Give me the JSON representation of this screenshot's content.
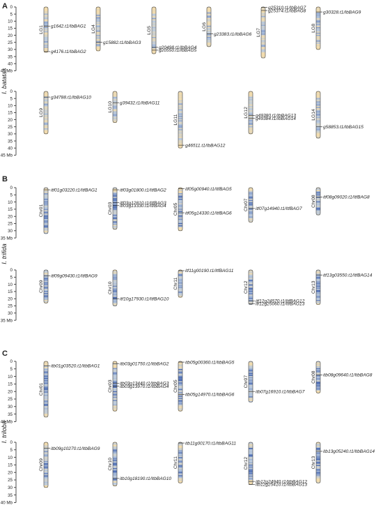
{
  "panels": [
    {
      "letter": "A",
      "species": "I. batatas",
      "unit": "Mb",
      "rows": [
        {
          "max": 45,
          "step": 5,
          "chromosomes": [
            {
              "name": "LG1",
              "length": 32,
              "genes": [
                {
                  "label": "g1642.t1/IbBAG1",
                  "pos": 13.5
                },
                {
                  "label": "g4176.t1/IbBAG2",
                  "pos": 31.5
                }
              ]
            },
            {
              "name": "LG4",
              "length": 31,
              "genes": [
                {
                  "label": "g15882.t1/IbBAG3",
                  "pos": 25
                }
              ]
            },
            {
              "name": "LG5",
              "length": 33,
              "genes": [
                {
                  "label": "g20498.t1/IbBAG4",
                  "pos": 28.5
                },
                {
                  "label": "g20550.t1/IbBAG5",
                  "pos": 30.5
                }
              ]
            },
            {
              "name": "LG6",
              "length": 28,
              "genes": [
                {
                  "label": "g23383.t1/IbBAG6",
                  "pos": 19
                }
              ]
            },
            {
              "name": "LG7",
              "length": 36,
              "genes": [
                {
                  "label": "g25310.t1/IbBAG7",
                  "pos": 0.3
                },
                {
                  "label": "g25374.t1/IbBAG8",
                  "pos": 2.5
                }
              ]
            },
            {
              "name": "LG8",
              "length": 30,
              "genes": [
                {
                  "label": "g30328.t1/IbBAG9",
                  "pos": 3.5
                }
              ]
            }
          ]
        },
        {
          "max": 45,
          "step": 5,
          "chromosomes": [
            {
              "name": "LG9",
              "length": 30,
              "genes": [
                {
                  "label": "g34788.t1/IbBAG10",
                  "pos": 4
                }
              ]
            },
            {
              "name": "LG10",
              "length": 22,
              "genes": [
                {
                  "label": "g39432.t1/IbBAG11",
                  "pos": 8
                }
              ]
            },
            {
              "name": "LG11",
              "length": 40,
              "genes": [
                {
                  "label": "g46511.t1/IbBAG12",
                  "pos": 38
                }
              ]
            },
            {
              "name": "LG12",
              "length": 30,
              "genes": [
                {
                  "label": "g49380.t1/IbBAG13",
                  "pos": 17
                },
                {
                  "label": "g49384.t1/IbBAG14",
                  "pos": 19
                }
              ]
            },
            {
              "name": "LG14",
              "length": 33,
              "genes": [
                {
                  "label": "g58853.t1/IbBAG15",
                  "pos": 25
                }
              ]
            }
          ]
        }
      ]
    },
    {
      "letter": "B",
      "species": "I. trifida",
      "unit": "Mb",
      "rows": [
        {
          "max": 35,
          "step": 5,
          "chromosomes": [
            {
              "name": "Chr01",
              "length": 32,
              "genes": [
                {
                  "label": "itf01g03220.t1/ItfBAG1",
                  "pos": 1.5
                }
              ]
            },
            {
              "name": "Chr03",
              "length": 29,
              "genes": [
                {
                  "label": "itf03g01800.t1/ItfBAG2",
                  "pos": 1.5
                },
                {
                  "label": "itf03g12810.t1/ItfBAG3",
                  "pos": 10.5
                },
                {
                  "label": "itf03g13330.t1/ItfBAG4",
                  "pos": 12.5
                }
              ]
            },
            {
              "name": "Chr05",
              "length": 30,
              "genes": [
                {
                  "label": "itf05g00940.t1/ItfBAG5",
                  "pos": 0.8
                },
                {
                  "label": "itf05g14330.t1/ItfBAG6",
                  "pos": 17.5
                }
              ]
            },
            {
              "name": "Chr07",
              "length": 24,
              "genes": [
                {
                  "label": "itf07g14940.t1/ItfBAG7",
                  "pos": 14.5
                }
              ]
            },
            {
              "name": "Chr08",
              "length": 19,
              "genes": [
                {
                  "label": "itf08g09020.t1/ItfBAG8",
                  "pos": 6.5
                }
              ]
            }
          ]
        },
        {
          "max": 35,
          "step": 5,
          "chromosomes": [
            {
              "name": "Chr09",
              "length": 23,
              "genes": [
                {
                  "label": "itf09g09430.t1/ItfBAG9",
                  "pos": 4
                }
              ]
            },
            {
              "name": "Chr10",
              "length": 25,
              "genes": [
                {
                  "label": "itf10g17930.t1/ItfBAG10",
                  "pos": 20
                }
              ]
            },
            {
              "name": "Chr11",
              "length": 19,
              "genes": [
                {
                  "label": "itf11g00190.t1/ItfBAG11",
                  "pos": 0.5
                }
              ]
            },
            {
              "name": "Chr12",
              "length": 24,
              "genes": [
                {
                  "label": "itf12g24570.t1/ItfBAG12",
                  "pos": 21.5
                },
                {
                  "label": "itf12g25060.t1/ItfBAG13",
                  "pos": 23.5
                }
              ]
            },
            {
              "name": "Chr13",
              "length": 24,
              "genes": [
                {
                  "label": "itf13g03550.t1/ItfBAG14",
                  "pos": 3.5
                }
              ]
            }
          ]
        }
      ]
    },
    {
      "letter": "C",
      "species": "I. triloba",
      "unit": "Mb",
      "rows": [
        {
          "max": 40,
          "step": 5,
          "chromosomes": [
            {
              "name": "Chr01",
              "length": 37,
              "genes": [
                {
                  "label": "itb01g03520.t1/ItbBAG1",
                  "pos": 3
                }
              ]
            },
            {
              "name": "Chr03",
              "length": 33,
              "genes": [
                {
                  "label": "itb03g01750.t1/ItbBAG2",
                  "pos": 1.5
                },
                {
                  "label": "itb03g13440.t1/ItbBAG3",
                  "pos": 14.5
                },
                {
                  "label": "itb03g13970.t1/ItbBAG4",
                  "pos": 16.5
                }
              ]
            },
            {
              "name": "Chr05",
              "length": 33,
              "genes": [
                {
                  "label": "itb05g00360.t1/ItbBAG5",
                  "pos": 0.5
                },
                {
                  "label": "itb05g14970.t1/ItbBAG6",
                  "pos": 22
                }
              ]
            },
            {
              "name": "Chr07",
              "length": 27,
              "genes": [
                {
                  "label": "itb07g16910.t1/ItbBAG7",
                  "pos": 20
                }
              ]
            },
            {
              "name": "Chr08",
              "length": 21,
              "genes": [
                {
                  "label": "itb08g09640.t1/ItbBAG8",
                  "pos": 9
                }
              ]
            }
          ]
        },
        {
          "max": 40,
          "step": 5,
          "chromosomes": [
            {
              "name": "Chr09",
              "length": 30,
              "genes": [
                {
                  "label": "itb09g10270.t1/ItbBAG9",
                  "pos": 4
                }
              ]
            },
            {
              "name": "Chr10",
              "length": 29,
              "genes": [
                {
                  "label": "itb10g18190.t1/ItbBAG10",
                  "pos": 24
                }
              ]
            },
            {
              "name": "Chr11",
              "length": 27,
              "genes": [
                {
                  "label": "itb11g00170.t1/ItbBAG11",
                  "pos": 0.5
                }
              ]
            },
            {
              "name": "Chr12",
              "length": 28,
              "genes": [
                {
                  "label": "itb12g24940.t1/ItbBAG12",
                  "pos": 26
                },
                {
                  "label": "itb12g25410.t1/ItbBAG13",
                  "pos": 28
                }
              ]
            },
            {
              "name": "Chr13",
              "length": 27,
              "genes": [
                {
                  "label": "itb13g05240.t1/ItbBAG14",
                  "pos": 6
                }
              ]
            }
          ]
        }
      ]
    }
  ],
  "colors": {
    "axis": "#222222",
    "outline": "#555555",
    "gene_line": "#333333",
    "density_low": "#f2dcae",
    "density_mid": "#b8c9df",
    "density_high": "#3d5fae"
  }
}
